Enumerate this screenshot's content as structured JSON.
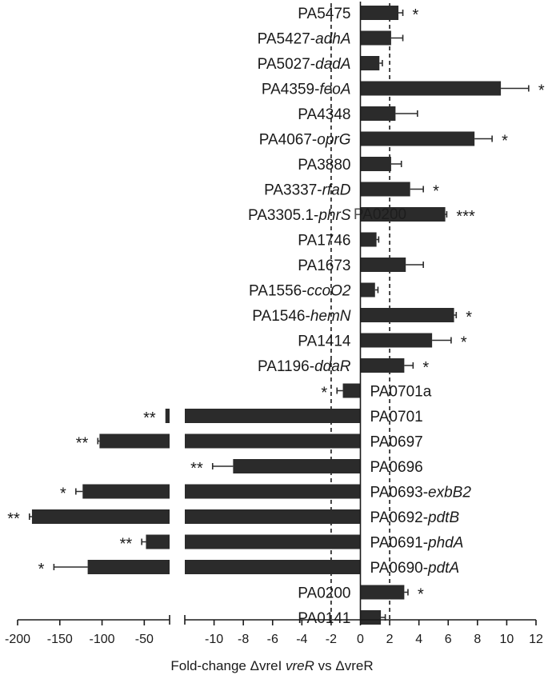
{
  "chart_data": {
    "type": "bar",
    "orientation": "horizontal",
    "broken_axis": true,
    "xlabel_parts": [
      "Fold-change ",
      "Δ",
      "vreI ",
      "vreR",
      " vs ",
      "Δ",
      "vreR"
    ],
    "left_segment": {
      "xlim": [
        -200,
        -20
      ],
      "ticks": [
        -200,
        -150,
        -100,
        -50
      ]
    },
    "right_segment": {
      "xlim": [
        -12,
        12
      ],
      "ticks": [
        -10,
        -8,
        -6,
        -4,
        -2,
        0,
        2,
        4,
        6,
        8,
        10,
        12
      ]
    },
    "reference_lines": [
      -2,
      2
    ],
    "overlay_text": "PA0200",
    "categories": [
      {
        "id": "PA5475",
        "gene": "",
        "value": 2.6,
        "error": 0.3,
        "sig": "*"
      },
      {
        "id": "PA5427",
        "gene": "adhA",
        "value": 2.1,
        "error": 0.8,
        "sig": ""
      },
      {
        "id": "PA5027",
        "gene": "dadA",
        "value": 1.3,
        "error": 0.2,
        "sig": ""
      },
      {
        "id": "PA4359",
        "gene": "feoA",
        "value": 9.6,
        "error": 1.9,
        "sig": "*"
      },
      {
        "id": "PA4348",
        "gene": "",
        "value": 2.4,
        "error": 1.5,
        "sig": ""
      },
      {
        "id": "PA4067",
        "gene": "oprG",
        "value": 7.8,
        "error": 1.2,
        "sig": "*"
      },
      {
        "id": "PA3880",
        "gene": "",
        "value": 2.1,
        "error": 0.7,
        "sig": ""
      },
      {
        "id": "PA3337",
        "gene": "rfaD",
        "value": 3.4,
        "error": 0.9,
        "sig": "*"
      },
      {
        "id": "PA3305.1",
        "gene": "phrS",
        "value": 5.8,
        "error": 0.1,
        "sig": "***"
      },
      {
        "id": "PA1746",
        "gene": "",
        "value": 1.1,
        "error": 0.15,
        "sig": ""
      },
      {
        "id": "PA1673",
        "gene": "",
        "value": 3.1,
        "error": 1.2,
        "sig": ""
      },
      {
        "id": "PA1556",
        "gene": "ccoO2",
        "value": 1.0,
        "error": 0.2,
        "sig": ""
      },
      {
        "id": "PA1546",
        "gene": "hemN",
        "value": 6.4,
        "error": 0.15,
        "sig": "*"
      },
      {
        "id": "PA1414",
        "gene": "",
        "value": 4.9,
        "error": 1.3,
        "sig": "*"
      },
      {
        "id": "PA1196",
        "gene": "ddaR",
        "value": 3.0,
        "error": 0.6,
        "sig": "*"
      },
      {
        "id": "PA0701a",
        "gene": "",
        "value": -1.2,
        "error": 0.4,
        "sig": "*"
      },
      {
        "id": "PA0701",
        "gene": "",
        "value": -25,
        "error": 0,
        "sig": "**"
      },
      {
        "id": "PA0697",
        "gene": "",
        "value": -103,
        "error": 2,
        "sig": "**"
      },
      {
        "id": "PA0696",
        "gene": "",
        "value": -8.7,
        "error": 1.4,
        "sig": "**"
      },
      {
        "id": "PA0693",
        "gene": "exbB2",
        "value": -123,
        "error": 8,
        "sig": "*"
      },
      {
        "id": "PA0692",
        "gene": "pdtB",
        "value": -183,
        "error": 3,
        "sig": "**"
      },
      {
        "id": "PA0691",
        "gene": "phdA",
        "value": -48,
        "error": 5,
        "sig": "**"
      },
      {
        "id": "PA0690",
        "gene": "pdtA",
        "value": -117,
        "error": 40,
        "sig": "*"
      },
      {
        "id": "PA0200",
        "gene": "",
        "value": 3.0,
        "error": 0.25,
        "sig": "*"
      },
      {
        "id": "PA0141",
        "gene": "",
        "value": 1.4,
        "error": 0.3,
        "sig": ""
      }
    ]
  }
}
